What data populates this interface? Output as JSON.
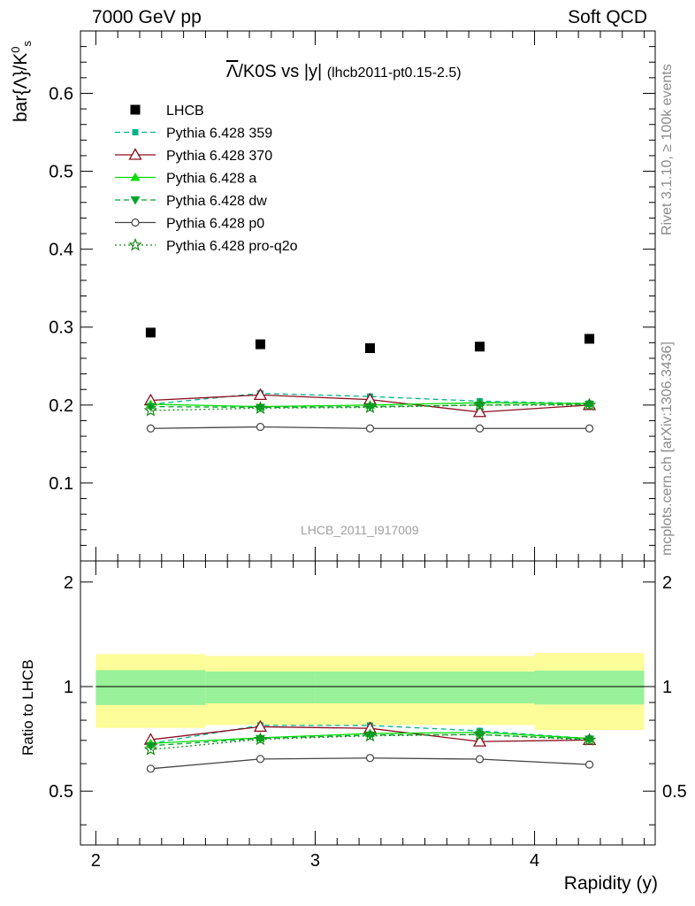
{
  "header": {
    "left": "7000 GeV pp",
    "right": "Soft QCD"
  },
  "side_labels": {
    "rivet": "Rivet 3.1.10, ≥ 100k events",
    "mcplots": "mcplots.cern.ch [arXiv:1306.3436]"
  },
  "watermark": "LHCB_2011_I917009",
  "chart_data": {
    "type": "scatter",
    "title": "Λ/K0S vs |y|",
    "title_overline": "Λ",
    "title_rest": "/K0S vs |y|",
    "subtitle": "(lhcb2011-pt0.15-2.5)",
    "xlabel": "Rapidity (y)",
    "ylabel": "bar{Λ}/K",
    "ylabel_sup": "0",
    "ylabel_sub": "s",
    "ratio_ylabel": "Ratio to LHCB",
    "xlim": [
      1.93,
      4.55
    ],
    "ylim": [
      0.0,
      0.68
    ],
    "ratio_ylim": [
      0.35,
      2.3
    ],
    "x_ticks": [
      "2",
      "3",
      "4"
    ],
    "y_ticks": [
      "0.1",
      "0.2",
      "0.3",
      "0.4",
      "0.5",
      "0.6"
    ],
    "ratio_ticks": [
      "0.5",
      "1",
      "2"
    ],
    "bins": [
      2.0,
      2.5,
      3.0,
      3.5,
      4.0,
      4.5
    ],
    "x": [
      2.25,
      2.75,
      3.25,
      3.75,
      4.25
    ],
    "legend_position": "top-left",
    "data": {
      "name": "LHCB",
      "values": [
        0.293,
        0.278,
        0.273,
        0.275,
        0.285
      ],
      "band_inner": [
        0.115,
        0.105,
        0.105,
        0.105,
        0.112
      ],
      "band_outer": [
        0.24,
        0.225,
        0.225,
        0.225,
        0.25
      ]
    },
    "series": [
      {
        "name": "Pythia 6.428 359",
        "values": [
          0.201,
          0.215,
          0.211,
          0.205,
          0.202
        ],
        "color": "#00b58a",
        "marker": "square",
        "dash": "6,4"
      },
      {
        "name": "Pythia 6.428 370",
        "values": [
          0.206,
          0.213,
          0.207,
          0.191,
          0.2
        ],
        "color": "#8b0e1e",
        "marker": "triangle-open",
        "dash": ""
      },
      {
        "name": "Pythia 6.428 a",
        "values": [
          0.201,
          0.198,
          0.2,
          0.203,
          0.202
        ],
        "color": "#00dd00",
        "marker": "triangle",
        "dash": ""
      },
      {
        "name": "Pythia 6.428 dw",
        "values": [
          0.198,
          0.197,
          0.198,
          0.2,
          0.201
        ],
        "color": "#00a52a",
        "marker": "triangle-down",
        "dash": "6,4"
      },
      {
        "name": "Pythia 6.428 p0",
        "values": [
          0.17,
          0.172,
          0.17,
          0.17,
          0.17
        ],
        "color": "#444444",
        "marker": "circle-open",
        "dash": ""
      },
      {
        "name": "Pythia 6.428 pro-q2o",
        "values": [
          0.193,
          0.196,
          0.197,
          0.2,
          0.2
        ],
        "color": "#1a8a1a",
        "marker": "star",
        "dash": "2,3"
      }
    ],
    "colors": {
      "band_inner": "#99f299",
      "band_outer": "#fdfd99",
      "data_marker": "#000000"
    }
  }
}
